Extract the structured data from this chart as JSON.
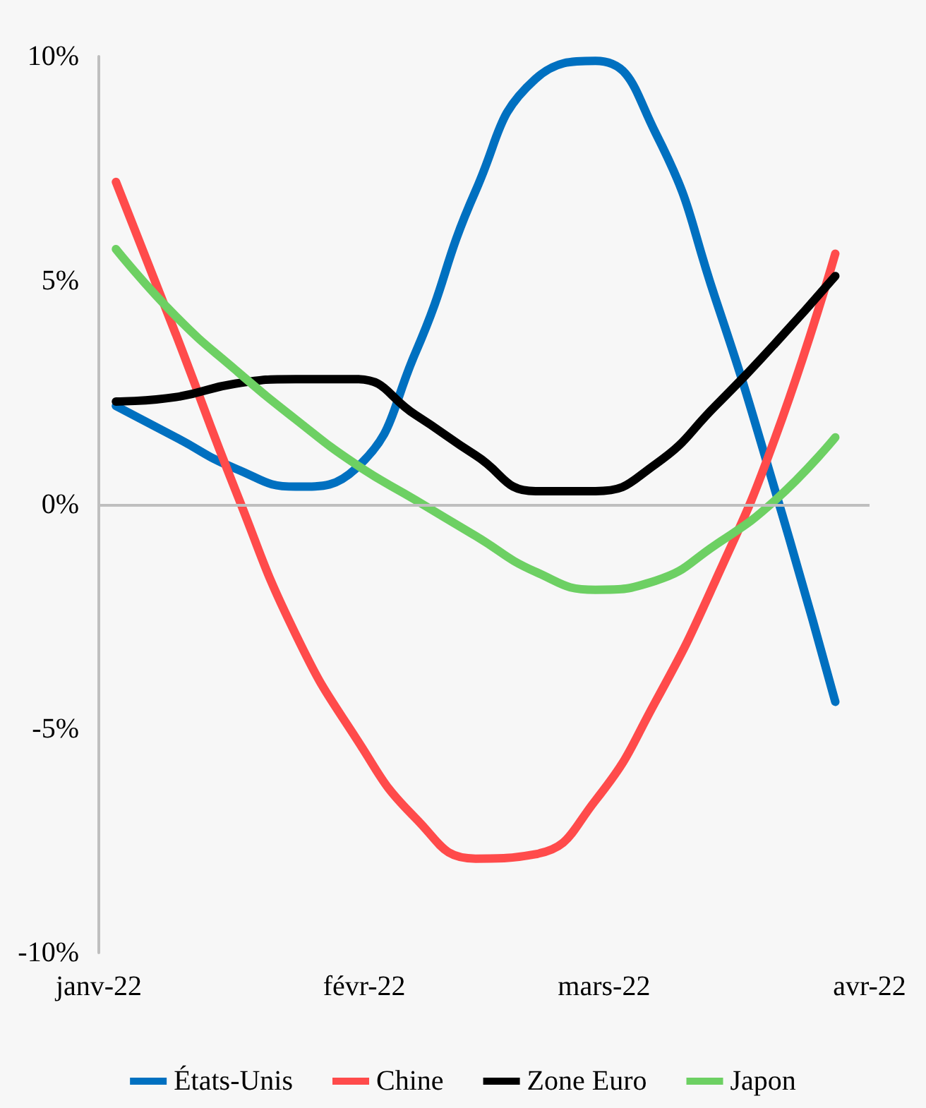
{
  "chart_data": {
    "type": "line",
    "x": [
      "2022-01-03",
      "2022-01-10",
      "2022-01-17",
      "2022-01-24",
      "2022-01-31",
      "2022-02-07",
      "2022-02-14",
      "2022-02-21",
      "2022-02-28",
      "2022-03-07",
      "2022-03-14",
      "2022-03-21",
      "2022-03-28"
    ],
    "series": [
      {
        "name": "États-Unis",
        "color": "#0070c0",
        "values": [
          2.2,
          1.5,
          0.8,
          0.4,
          0.8,
          3.4,
          7.0,
          9.5,
          9.9,
          8.3,
          4.6,
          0.3,
          -4.4
        ]
      },
      {
        "name": "Chine",
        "color": "#ff4b4b",
        "values": [
          7.2,
          3.8,
          0.3,
          -2.9,
          -5.2,
          -7.0,
          -7.9,
          -7.8,
          -6.6,
          -4.4,
          -1.7,
          1.5,
          5.6
        ]
      },
      {
        "name": "Zone Euro",
        "color": "#000000",
        "values": [
          2.3,
          2.4,
          2.7,
          2.8,
          2.8,
          2.0,
          1.1,
          0.3,
          0.3,
          0.9,
          2.2,
          3.6,
          5.1
        ]
      },
      {
        "name": "Japon",
        "color": "#6dd063",
        "values": [
          5.7,
          4.2,
          3.0,
          1.9,
          0.9,
          0.1,
          -0.7,
          -1.5,
          -1.9,
          -1.7,
          -0.9,
          0.1,
          1.5
        ]
      }
    ],
    "xlim": [
      "2022-01-01",
      "2022-04-01"
    ],
    "xticks": [
      {
        "value": "2022-01-01",
        "label": "janv-22"
      },
      {
        "value": "2022-02-01",
        "label": "févr-22"
      },
      {
        "value": "2022-03-01",
        "label": "mars-22"
      },
      {
        "value": "2022-04-01",
        "label": "avr-22"
      }
    ],
    "ylim": [
      -10,
      10
    ],
    "yticks": [
      {
        "value": -10,
        "label": "-10%"
      },
      {
        "value": -5,
        "label": "-5%"
      },
      {
        "value": 0,
        "label": "0%"
      },
      {
        "value": 5,
        "label": "5%"
      },
      {
        "value": 10,
        "label": "10%"
      }
    ],
    "ref_lines": [
      {
        "axis": "y",
        "value": 0,
        "color": "#bfbfbf"
      }
    ],
    "grid": false,
    "legend": "bottom",
    "marker": "none",
    "line_style": "solid"
  }
}
